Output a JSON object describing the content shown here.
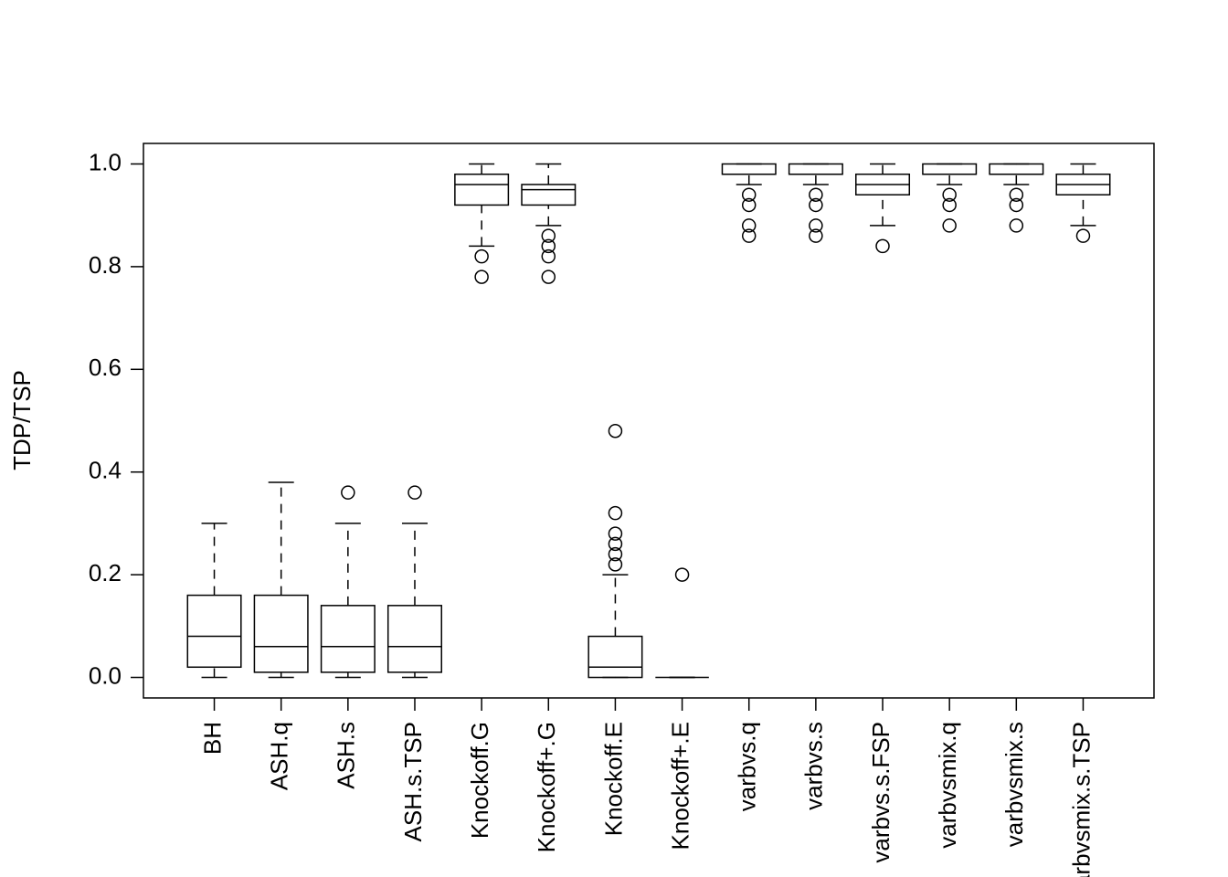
{
  "chart_data": {
    "type": "boxplot",
    "y_label": "TDP/TSP",
    "categories": [
      "BH",
      "ASH.q",
      "ASH.s",
      "ASH.s.TSP",
      "Knockoff.G",
      "Knockoff+.G",
      "Knockoff.E",
      "Knockoff+.E",
      "varbvs.q",
      "varbvs.s",
      "varbvs.s.FSP",
      "varbvsmix.q",
      "varbvsmix.s",
      "varbvsmix.s.TSP"
    ],
    "boxes": [
      {
        "low": 0,
        "q1": 0.02,
        "median": 0.08,
        "q3": 0.16,
        "high": 0.3,
        "outliers": []
      },
      {
        "low": 0,
        "q1": 0.01,
        "median": 0.06,
        "q3": 0.16,
        "high": 0.38,
        "outliers": []
      },
      {
        "low": 0,
        "q1": 0.01,
        "median": 0.06,
        "q3": 0.14,
        "high": 0.3,
        "outliers": [
          0.36
        ]
      },
      {
        "low": 0,
        "q1": 0.01,
        "median": 0.06,
        "q3": 0.14,
        "high": 0.3,
        "outliers": [
          0.36
        ]
      },
      {
        "low": 0.84,
        "q1": 0.92,
        "median": 0.96,
        "q3": 0.98,
        "high": 1.0,
        "outliers": [
          0.82,
          0.78
        ]
      },
      {
        "low": 0.88,
        "q1": 0.92,
        "median": 0.95,
        "q3": 0.96,
        "high": 1.0,
        "outliers": [
          0.86,
          0.84,
          0.82,
          0.78
        ]
      },
      {
        "low": 0,
        "q1": 0,
        "median": 0.02,
        "q3": 0.08,
        "high": 0.2,
        "outliers": [
          0.22,
          0.24,
          0.26,
          0.28,
          0.32,
          0.48
        ]
      },
      {
        "low": 0,
        "q1": 0,
        "median": 0,
        "q3": 0,
        "high": 0,
        "outliers": [
          0.2
        ]
      },
      {
        "low": 0.96,
        "q1": 0.98,
        "median": 0.98,
        "q3": 1.0,
        "high": 1.0,
        "outliers": [
          0.94,
          0.92,
          0.88,
          0.86
        ]
      },
      {
        "low": 0.96,
        "q1": 0.98,
        "median": 0.98,
        "q3": 1.0,
        "high": 1.0,
        "outliers": [
          0.94,
          0.92,
          0.88,
          0.86
        ]
      },
      {
        "low": 0.88,
        "q1": 0.94,
        "median": 0.96,
        "q3": 0.98,
        "high": 1.0,
        "outliers": [
          0.84
        ]
      },
      {
        "low": 0.96,
        "q1": 0.98,
        "median": 0.98,
        "q3": 1.0,
        "high": 1.0,
        "outliers": [
          0.94,
          0.92,
          0.88
        ]
      },
      {
        "low": 0.96,
        "q1": 0.98,
        "median": 0.98,
        "q3": 1.0,
        "high": 1.0,
        "outliers": [
          0.94,
          0.92,
          0.88
        ]
      },
      {
        "low": 0.88,
        "q1": 0.94,
        "median": 0.96,
        "q3": 0.98,
        "high": 1.0,
        "outliers": [
          0.86
        ]
      }
    ],
    "ylim": [
      -0.04,
      1.04
    ],
    "yticks": [
      {
        "value": 0,
        "label": "0.0"
      },
      0.2,
      0.4,
      0.6,
      0.8,
      {
        "value": 1,
        "label": "1.0"
      }
    ]
  }
}
